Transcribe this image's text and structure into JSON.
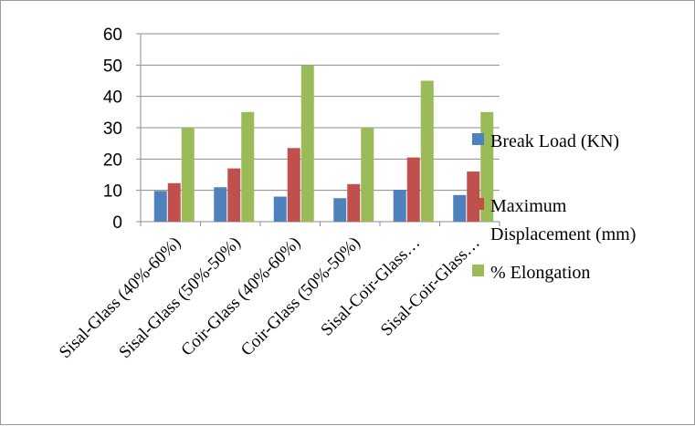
{
  "chart_data": {
    "type": "bar",
    "categories": [
      "Sisal-Glass (40%-60%)",
      "Sisal-Glass (50%-50%)",
      "Coir-Glass (40%-60%)",
      "Coir-Glass (50%-50%)",
      "Sisal-Coir-Glass…",
      "Sisal-Coir-Glass…"
    ],
    "series": [
      {
        "name": "Break Load (KN)",
        "color": "#4f81bd",
        "values": [
          9.8,
          11,
          8,
          7.5,
          10.2,
          8.5
        ]
      },
      {
        "name": "Maximum Displacement (mm)",
        "color": "#c0504d",
        "values": [
          12.3,
          17,
          23.5,
          12,
          20.5,
          16
        ]
      },
      {
        "name": "% Elongation",
        "color": "#9bbb59",
        "values": [
          30,
          35,
          50,
          30,
          45,
          35
        ]
      }
    ],
    "legend_lines": [
      [
        "Break Load (KN)"
      ],
      [
        "Maximum",
        "Displacement (mm)"
      ],
      [
        "% Elongation"
      ]
    ],
    "yticks": [
      "0",
      "10",
      "20",
      "30",
      "40",
      "50",
      "60"
    ],
    "ylim": [
      0,
      60
    ],
    "grid": true,
    "legend_position": "right"
  }
}
